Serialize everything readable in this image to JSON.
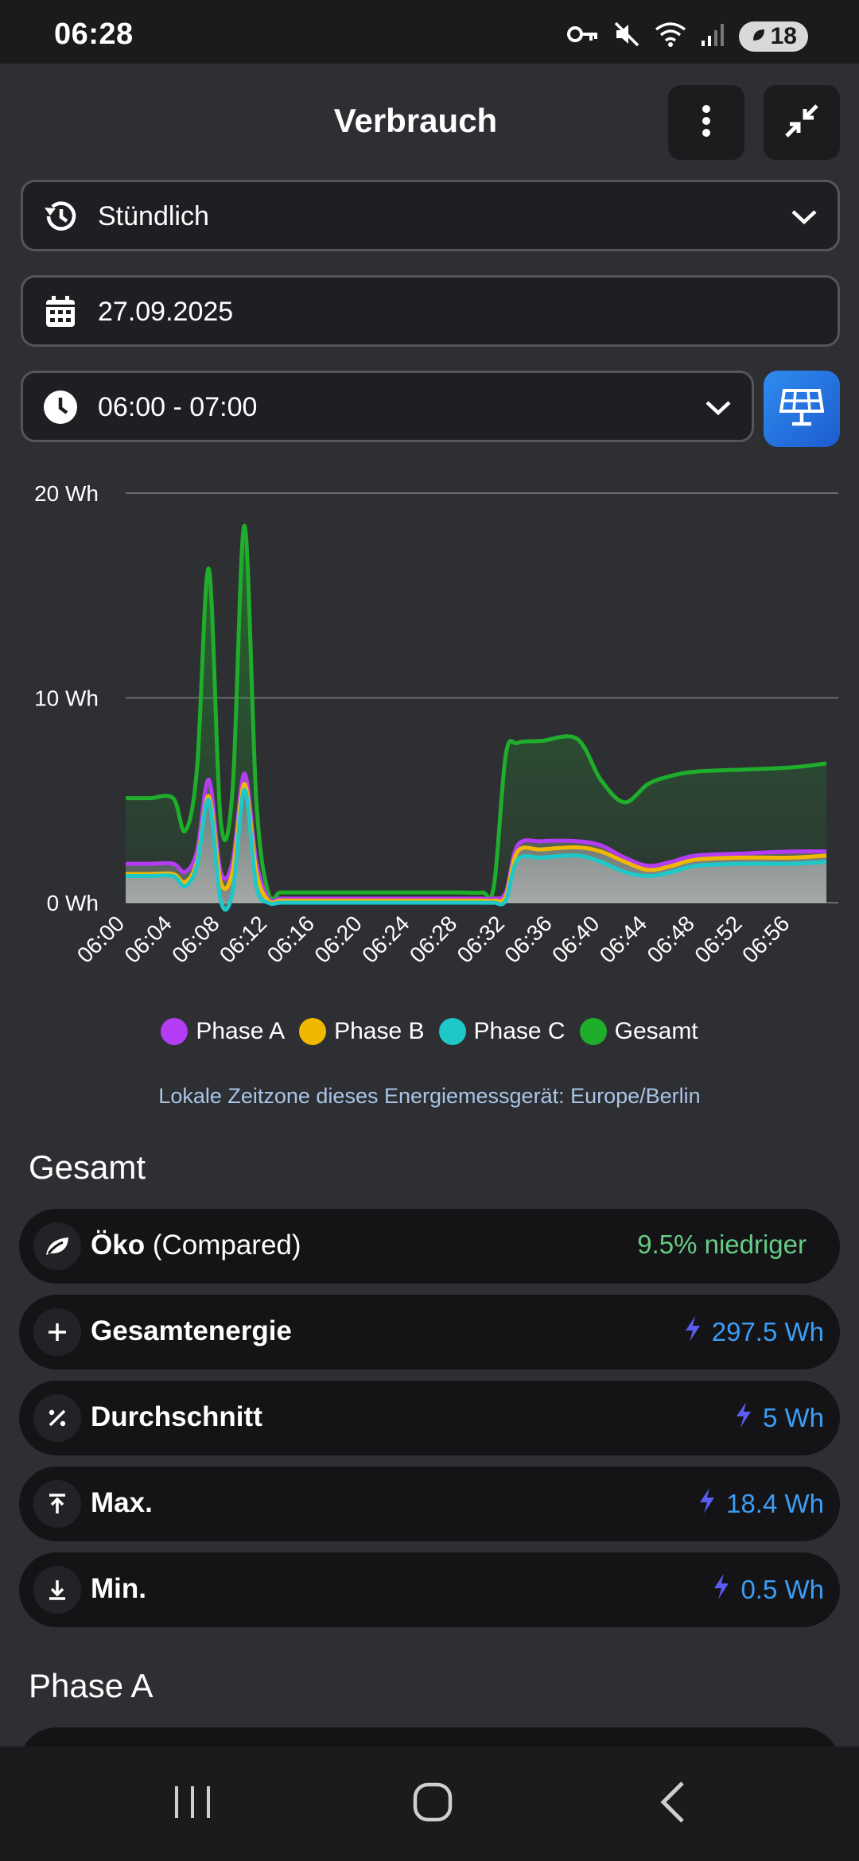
{
  "status": {
    "time": "06:28",
    "battery": "18"
  },
  "header": {
    "title": "Verbrauch"
  },
  "period_select": {
    "value": "Stündlich"
  },
  "date_field": {
    "value": "27.09.2025"
  },
  "time_select": {
    "value": "06:00 - 07:00"
  },
  "chart_data": {
    "type": "area",
    "y_tick_labels": [
      "20 Wh",
      "10 Wh",
      "0 Wh"
    ],
    "y_ticks": [
      20,
      10,
      0
    ],
    "ylim": [
      0,
      20
    ],
    "x_tick_labels": [
      "06:00",
      "06:04",
      "06:08",
      "06:12",
      "06:16",
      "06:20",
      "06:24",
      "06:28",
      "06:32",
      "06:36",
      "06:40",
      "06:44",
      "06:48",
      "06:52",
      "06:56"
    ],
    "x": [
      0,
      2,
      4,
      5,
      6,
      7,
      8,
      9,
      10,
      11,
      12,
      13,
      14,
      16,
      20,
      24,
      28,
      30,
      31,
      32,
      33,
      35,
      38,
      40,
      42,
      44,
      46,
      48,
      52,
      56,
      59
    ],
    "series": [
      {
        "name": "Phase A",
        "color": "#b43cf5",
        "values": [
          1.9,
          1.9,
          1.9,
          1.5,
          2.5,
          6.0,
          1.5,
          2.0,
          6.3,
          2.0,
          0.2,
          0.2,
          0.2,
          0.2,
          0.2,
          0.2,
          0.2,
          0.2,
          0.2,
          0.5,
          2.8,
          3.0,
          3.0,
          2.8,
          2.2,
          1.8,
          2.0,
          2.3,
          2.4,
          2.5,
          2.5
        ]
      },
      {
        "name": "Phase B",
        "color": "#f0b800",
        "values": [
          1.4,
          1.4,
          1.4,
          1.0,
          2.0,
          5.2,
          1.0,
          1.5,
          5.8,
          1.5,
          0.1,
          0.1,
          0.1,
          0.1,
          0.1,
          0.1,
          0.1,
          0.1,
          0.1,
          0.3,
          2.5,
          2.6,
          2.7,
          2.5,
          2.0,
          1.6,
          1.8,
          2.1,
          2.2,
          2.2,
          2.3
        ]
      },
      {
        "name": "Phase C",
        "color": "#1ec8c8",
        "values": [
          1.3,
          1.3,
          1.3,
          0.8,
          1.8,
          5.0,
          0.1,
          0.5,
          5.5,
          0.8,
          0.0,
          0.0,
          0.0,
          0.0,
          0.0,
          0.0,
          0.0,
          0.0,
          0.0,
          0.1,
          2.1,
          2.2,
          2.3,
          2.0,
          1.5,
          1.3,
          1.5,
          1.8,
          1.9,
          1.9,
          2.0
        ]
      },
      {
        "name": "Gesamt",
        "color": "#1fae2b",
        "values": [
          5.1,
          5.1,
          5.1,
          3.5,
          6.5,
          16.3,
          4.0,
          5.5,
          18.4,
          5.0,
          0.5,
          0.5,
          0.5,
          0.5,
          0.5,
          0.5,
          0.5,
          0.5,
          0.8,
          7.2,
          7.8,
          7.9,
          8.0,
          6.0,
          4.9,
          5.8,
          6.2,
          6.4,
          6.5,
          6.6,
          6.8
        ]
      }
    ],
    "grid": true,
    "legend": "bottom"
  },
  "timezone_note": "Lokale Zeitzone dieses Energiemessgerät: Europe/Berlin",
  "sections": {
    "gesamt": "Gesamt",
    "phase_a": "Phase A"
  },
  "stats": {
    "oeko": {
      "label": "Öko",
      "suffix": "(Compared)",
      "value": "9.5% niedriger"
    },
    "gesamtenergie": {
      "label": "Gesamtenergie",
      "value": "297.5 Wh"
    },
    "durchschnitt": {
      "label": "Durchschnitt",
      "value": "5 Wh"
    },
    "max": {
      "label": "Max.",
      "value": "18.4 Wh"
    },
    "min": {
      "label": "Min.",
      "value": "0.5 Wh"
    }
  },
  "colors": {
    "accent_blue": "#3d9df5",
    "bolt": "#5a5cf2",
    "eco_green": "#66cc85"
  }
}
